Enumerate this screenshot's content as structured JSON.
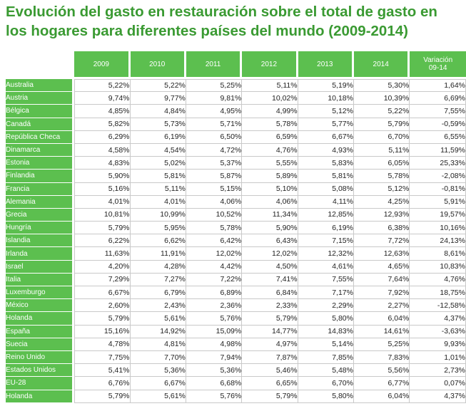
{
  "title_lines": [
    "Evolución del gasto en restauración sobre el total de gasto en",
    "los hogares para diferentes países del mundo (2009-2014)"
  ],
  "chart_data": {
    "type": "table",
    "columns": [
      "2009",
      "2010",
      "2011",
      "2012",
      "2013",
      "2014",
      "Variación 09-14"
    ],
    "rows": [
      {
        "country": "Australia",
        "values": [
          "5,22%",
          "5,22%",
          "5,25%",
          "5,11%",
          "5,19%",
          "5,30%",
          "1,64%"
        ]
      },
      {
        "country": "Austria",
        "values": [
          "9,74%",
          "9,77%",
          "9,81%",
          "10,02%",
          "10,18%",
          "10,39%",
          "6,69%"
        ]
      },
      {
        "country": "Bélgica",
        "values": [
          "4,85%",
          "4,84%",
          "4,95%",
          "4,99%",
          "5,12%",
          "5,22%",
          "7,55%"
        ]
      },
      {
        "country": "Canadá",
        "values": [
          "5,82%",
          "5,73%",
          "5,71%",
          "5,78%",
          "5,77%",
          "5,79%",
          "-0,59%"
        ]
      },
      {
        "country": "República Checa",
        "values": [
          "6,29%",
          "6,19%",
          "6,50%",
          "6,59%",
          "6,67%",
          "6,70%",
          "6,55%"
        ]
      },
      {
        "country": "Dinamarca",
        "values": [
          "4,58%",
          "4,54%",
          "4,72%",
          "4,76%",
          "4,93%",
          "5,11%",
          "11,59%"
        ]
      },
      {
        "country": "Estonia",
        "values": [
          "4,83%",
          "5,02%",
          "5,37%",
          "5,55%",
          "5,83%",
          "6,05%",
          "25,33%"
        ]
      },
      {
        "country": "Finlandia",
        "values": [
          "5,90%",
          "5,81%",
          "5,87%",
          "5,89%",
          "5,81%",
          "5,78%",
          "-2,08%"
        ]
      },
      {
        "country": "Francia",
        "values": [
          "5,16%",
          "5,11%",
          "5,15%",
          "5,10%",
          "5,08%",
          "5,12%",
          "-0,81%"
        ]
      },
      {
        "country": "Alemania",
        "values": [
          "4,01%",
          "4,01%",
          "4,06%",
          "4,06%",
          "4,11%",
          "4,25%",
          "5,91%"
        ]
      },
      {
        "country": "Grecia",
        "values": [
          "10,81%",
          "10,99%",
          "10,52%",
          "11,34%",
          "12,85%",
          "12,93%",
          "19,57%"
        ]
      },
      {
        "country": "Hungría",
        "values": [
          "5,79%",
          "5,95%",
          "5,78%",
          "5,90%",
          "6,19%",
          "6,38%",
          "10,16%"
        ]
      },
      {
        "country": "Islandia",
        "values": [
          "6,22%",
          "6,62%",
          "6,42%",
          "6,43%",
          "7,15%",
          "7,72%",
          "24,13%"
        ]
      },
      {
        "country": "Irlanda",
        "values": [
          "11,63%",
          "11,91%",
          "12,02%",
          "12,02%",
          "12,32%",
          "12,63%",
          "8,61%"
        ]
      },
      {
        "country": "Israel",
        "values": [
          "4,20%",
          "4,28%",
          "4,42%",
          "4,50%",
          "4,61%",
          "4,65%",
          "10,83%"
        ]
      },
      {
        "country": "Italia",
        "values": [
          "7,29%",
          "7,27%",
          "7,22%",
          "7,41%",
          "7,55%",
          "7,64%",
          "4,76%"
        ]
      },
      {
        "country": "Luxemburgo",
        "values": [
          "6,67%",
          "6,79%",
          "6,89%",
          "6,84%",
          "7,17%",
          "7,92%",
          "18,75%"
        ]
      },
      {
        "country": "México",
        "values": [
          "2,60%",
          "2,43%",
          "2,36%",
          "2,33%",
          "2,29%",
          "2,27%",
          "-12,58%"
        ]
      },
      {
        "country": "Holanda",
        "values": [
          "5,79%",
          "5,61%",
          "5,76%",
          "5,79%",
          "5,80%",
          "6,04%",
          "4,37%"
        ]
      },
      {
        "country": "España",
        "values": [
          "15,16%",
          "14,92%",
          "15,09%",
          "14,77%",
          "14,83%",
          "14,61%",
          "-3,63%"
        ]
      },
      {
        "country": "Suecia",
        "values": [
          "4,78%",
          "4,81%",
          "4,98%",
          "4,97%",
          "5,14%",
          "5,25%",
          "9,93%"
        ]
      },
      {
        "country": "Reino Unido",
        "values": [
          "7,75%",
          "7,70%",
          "7,94%",
          "7,87%",
          "7,85%",
          "7,83%",
          "1,01%"
        ]
      },
      {
        "country": "Estados Unidos",
        "values": [
          "5,41%",
          "5,36%",
          "5,36%",
          "5,46%",
          "5,48%",
          "5,56%",
          "2,73%"
        ]
      },
      {
        "country": "EU-28",
        "values": [
          "6,76%",
          "6,67%",
          "6,68%",
          "6,65%",
          "6,70%",
          "6,77%",
          "0,07%"
        ]
      },
      {
        "country": "Holanda",
        "values": [
          "5,79%",
          "5,61%",
          "5,76%",
          "5,79%",
          "5,80%",
          "6,04%",
          "4,37%"
        ]
      }
    ]
  },
  "colors": {
    "title": "#3a9a32",
    "header_bg": "#5cbf4f",
    "header_text": "#ffffff",
    "grid": "#c9c9c9"
  }
}
